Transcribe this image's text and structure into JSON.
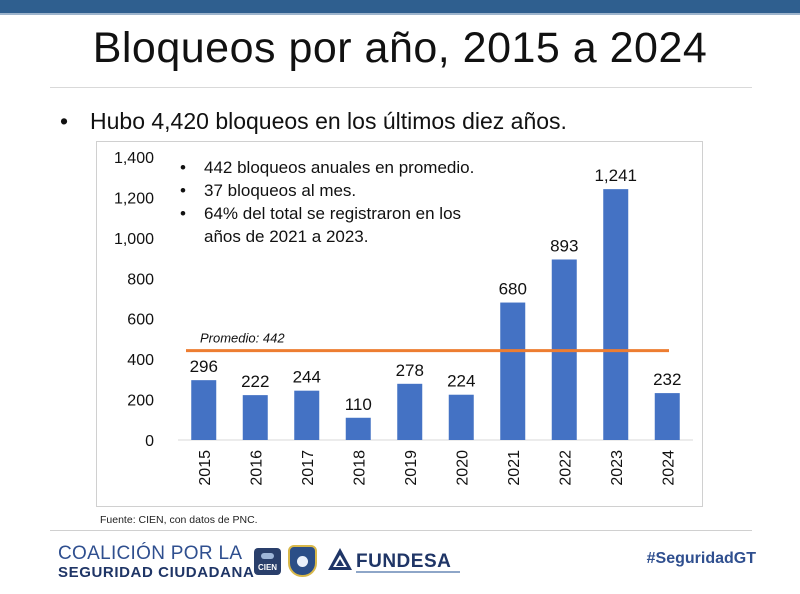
{
  "title": "Bloqueos por año, 2015 a 2024",
  "bullet_main": "Hubo 4,420 bloqueos en los últimos diez años.",
  "bullet_symbol": "•",
  "notes": [
    "442 bloqueos anuales en promedio.",
    "37 bloqueos al mes.",
    "64% del total se registraron en los",
    "años de 2021 a 2023."
  ],
  "source": "Fuente: CIEN, con datos de PNC.",
  "footer": {
    "brand_line1": "COALICIÓN POR LA",
    "brand_line2": "SEGURIDAD CIUDADANA",
    "cien_logo_text": "CIEN",
    "fundesa_text": "FUNDESA",
    "hashtag": "#SeguridadGT"
  },
  "colors": {
    "bar": "#4472c4",
    "average_line": "#ed7d31",
    "header_bar": "#2f5f8f",
    "brand": "#2f4f8f"
  },
  "chart_data": {
    "type": "bar",
    "categories": [
      "2015",
      "2016",
      "2017",
      "2018",
      "2019",
      "2020",
      "2021",
      "2022",
      "2023",
      "2024"
    ],
    "values": [
      296,
      222,
      244,
      110,
      278,
      224,
      680,
      893,
      1241,
      232
    ],
    "data_labels": [
      "296",
      "222",
      "244",
      "110",
      "278",
      "224",
      "680",
      "893",
      "1,241",
      "232"
    ],
    "ylim": [
      0,
      1400
    ],
    "yticks": [
      0,
      200,
      400,
      600,
      800,
      1000,
      1200,
      1400
    ],
    "ytick_labels": [
      "0",
      "200",
      "400",
      "600",
      "800",
      "1,000",
      "1,200",
      "1,400"
    ],
    "reference_line": {
      "value": 442,
      "label": "Promedio: 442"
    },
    "grid": false,
    "legend": "none"
  }
}
